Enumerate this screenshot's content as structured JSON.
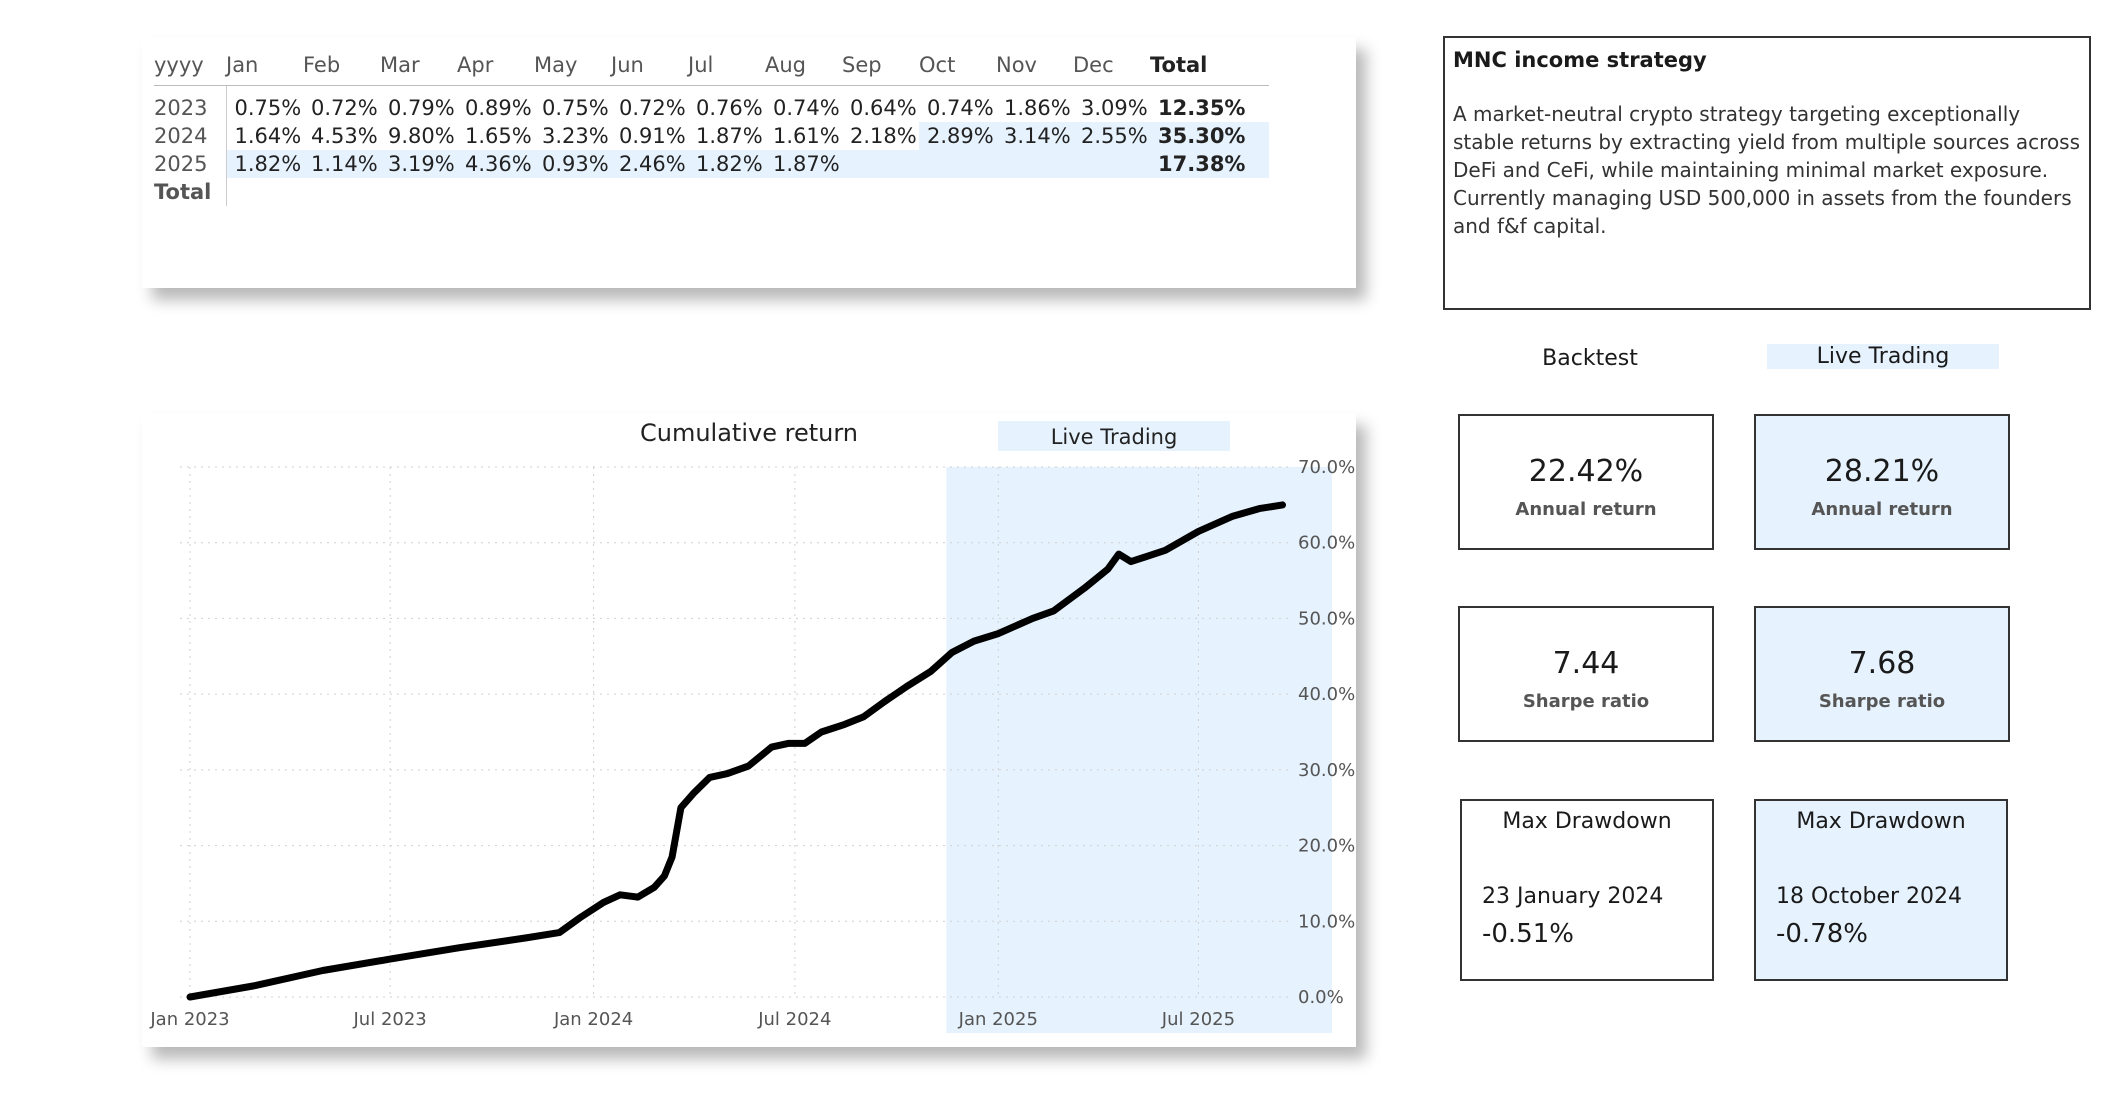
{
  "table": {
    "headers": [
      "yyyy",
      "Jan",
      "Feb",
      "Mar",
      "Apr",
      "May",
      "Jun",
      "Jul",
      "Aug",
      "Sep",
      "Oct",
      "Nov",
      "Dec",
      "Total"
    ],
    "rows": [
      {
        "year": "2023",
        "values": [
          "0.75%",
          "0.72%",
          "0.79%",
          "0.89%",
          "0.75%",
          "0.72%",
          "0.76%",
          "0.74%",
          "0.64%",
          "0.74%",
          "1.86%",
          "3.09%"
        ],
        "total": "12.35%"
      },
      {
        "year": "2024",
        "values": [
          "1.64%",
          "4.53%",
          "9.80%",
          "1.65%",
          "3.23%",
          "0.91%",
          "1.87%",
          "1.61%",
          "2.18%",
          "2.89%",
          "3.14%",
          "2.55%"
        ],
        "total": "35.30%"
      },
      {
        "year": "2025",
        "values": [
          "1.82%",
          "1.14%",
          "3.19%",
          "4.36%",
          "0.93%",
          "2.46%",
          "1.82%",
          "1.87%",
          "",
          "",
          "",
          ""
        ],
        "total": "17.38%"
      }
    ],
    "total_row_label": "Total"
  },
  "strategy": {
    "title": "MNC income strategy",
    "description": "A market-neutral crypto strategy targeting exceptionally stable returns by extracting yield from multiple sources across DeFi and CeFi, while maintaining minimal market exposure. Currently managing USD 500,000 in assets from the founders and f&f capital."
  },
  "kpis": {
    "backtest_label": "Backtest",
    "live_label": "Live Trading",
    "backtest": {
      "annual_return": "22.42%",
      "annual_return_label": "Annual return",
      "sharpe": "7.44",
      "sharpe_label": "Sharpe ratio",
      "dd_title": "Max Drawdown",
      "dd_date": "23 January 2024",
      "dd_value": "-0.51%"
    },
    "live": {
      "annual_return": "28.21%",
      "annual_return_label": "Annual return",
      "sharpe": "7.68",
      "sharpe_label": "Sharpe ratio",
      "dd_title": "Max Drawdown",
      "dd_date": "18 October 2024",
      "dd_value": "-0.78%"
    }
  },
  "colors": {
    "live_highlight": "#e6f2fd",
    "line": "#000000",
    "grid": "#d0d0d0"
  },
  "chart_data": {
    "type": "line",
    "title": "Cumulative return",
    "live_label": "Live Trading",
    "live_start": "2024-11-15",
    "x_ticks": [
      "Jan 2023",
      "Jul 2023",
      "Jan 2024",
      "Jul 2024",
      "Jan 2025",
      "Jul 2025"
    ],
    "y_ticks": [
      "0.0%",
      "10.0%",
      "20.0%",
      "30.0%",
      "40.0%",
      "50.0%",
      "60.0%",
      "70.0%"
    ],
    "xlim": [
      "2023-01-01",
      "2025-09-20"
    ],
    "ylim": [
      0,
      70
    ],
    "grid": true,
    "series": [
      {
        "points": [
          [
            "2023-01-01",
            0.0
          ],
          [
            "2023-03-01",
            1.5
          ],
          [
            "2023-05-01",
            3.5
          ],
          [
            "2023-07-01",
            5.0
          ],
          [
            "2023-09-01",
            6.5
          ],
          [
            "2023-11-01",
            7.8
          ],
          [
            "2023-12-01",
            8.5
          ],
          [
            "2023-12-20",
            10.5
          ],
          [
            "2024-01-10",
            12.5
          ],
          [
            "2024-01-25",
            13.5
          ],
          [
            "2024-02-10",
            13.2
          ],
          [
            "2024-02-25",
            14.5
          ],
          [
            "2024-03-05",
            16.0
          ],
          [
            "2024-03-12",
            18.5
          ],
          [
            "2024-03-20",
            25.0
          ],
          [
            "2024-04-01",
            27.0
          ],
          [
            "2024-04-15",
            29.0
          ],
          [
            "2024-05-01",
            29.5
          ],
          [
            "2024-05-20",
            30.5
          ],
          [
            "2024-06-10",
            33.0
          ],
          [
            "2024-06-25",
            33.5
          ],
          [
            "2024-07-10",
            33.5
          ],
          [
            "2024-07-25",
            35.0
          ],
          [
            "2024-08-15",
            36.0
          ],
          [
            "2024-09-01",
            37.0
          ],
          [
            "2024-09-20",
            39.0
          ],
          [
            "2024-10-10",
            41.0
          ],
          [
            "2024-11-01",
            43.0
          ],
          [
            "2024-11-20",
            45.5
          ],
          [
            "2024-12-10",
            47.0
          ],
          [
            "2025-01-01",
            48.0
          ],
          [
            "2025-02-01",
            50.0
          ],
          [
            "2025-02-20",
            51.0
          ],
          [
            "2025-03-20",
            54.0
          ],
          [
            "2025-04-10",
            56.5
          ],
          [
            "2025-04-20",
            58.5
          ],
          [
            "2025-05-01",
            57.5
          ],
          [
            "2025-06-01",
            59.0
          ],
          [
            "2025-07-01",
            61.5
          ],
          [
            "2025-08-01",
            63.5
          ],
          [
            "2025-08-25",
            64.5
          ],
          [
            "2025-09-15",
            65.0
          ]
        ]
      }
    ]
  }
}
